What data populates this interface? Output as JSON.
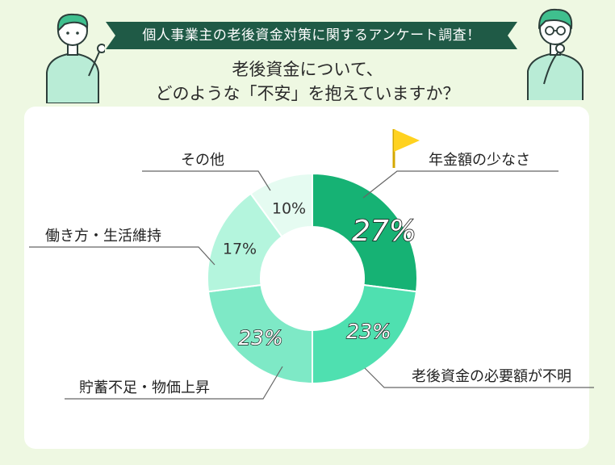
{
  "banner": "個人事業主の老後資金対策に関するアンケート調査！",
  "title_line1": "老後資金について、",
  "title_line2": "どのような「不安」を抱えていますか？",
  "colors": {
    "background": "#eef8e2",
    "banner": "#1f5a46",
    "slice1": "#16b274",
    "slice2": "#4fe0b0",
    "slice3": "#7ee9c6",
    "slice4": "#b4f5dd",
    "slice5": "#e5fbf1",
    "flag": "#ffd21f"
  },
  "chart_data": {
    "type": "pie",
    "donut": true,
    "slices": [
      {
        "label": "年金額の少なさ",
        "value": 27,
        "value_label": "27%"
      },
      {
        "label": "老後資金の必要額が不明",
        "value": 23,
        "value_label": "23%"
      },
      {
        "label": "貯蓄不足・物価上昇",
        "value": 23,
        "value_label": "23%"
      },
      {
        "label": "働き方・生活維持",
        "value": 17,
        "value_label": "17%"
      },
      {
        "label": "その他",
        "value": 10,
        "value_label": "10%"
      }
    ]
  }
}
